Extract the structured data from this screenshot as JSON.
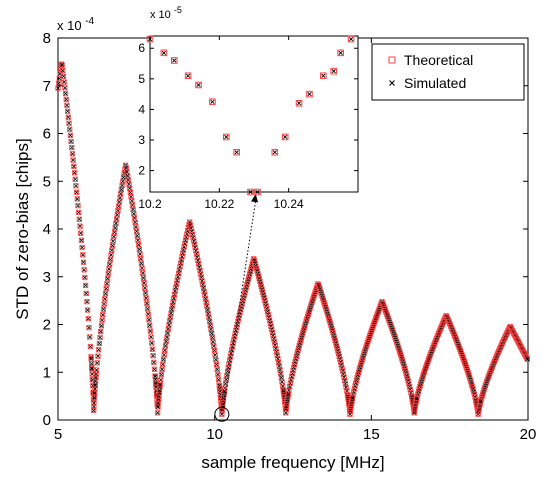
{
  "chart_data": [
    {
      "id": "main",
      "type": "scatter",
      "xlabel": "sample frequency [MHz]",
      "ylabel": "STD of zero-bias [chips]",
      "y_exponent_label": "x 10",
      "y_exponent_power": "-4",
      "xlim": [
        5,
        20
      ],
      "ylim": [
        0,
        8
      ],
      "y_scale": 0.0001,
      "xticks": [
        5,
        10,
        15,
        20
      ],
      "yticks": [
        0,
        1,
        2,
        3,
        4,
        5,
        6,
        7,
        8
      ],
      "grid": false,
      "legend_position": "top-right",
      "series": [
        {
          "name": "Theoretical",
          "marker": "square",
          "color": "#ff4040"
        },
        {
          "name": "Simulated",
          "marker": "x",
          "color": "#000000"
        }
      ],
      "peaks": [
        {
          "x": 5.12,
          "y": 7.5
        },
        {
          "x": 7.16,
          "y": 5.35
        },
        {
          "x": 9.2,
          "y": 4.15
        },
        {
          "x": 11.25,
          "y": 3.38
        },
        {
          "x": 13.3,
          "y": 2.86
        },
        {
          "x": 15.34,
          "y": 2.48
        },
        {
          "x": 17.39,
          "y": 2.19
        },
        {
          "x": 19.43,
          "y": 1.96
        }
      ],
      "nulls": [
        {
          "x": 6.14,
          "y": 0.2
        },
        {
          "x": 8.18,
          "y": 0.15
        },
        {
          "x": 10.23,
          "y": 0.12
        },
        {
          "x": 12.27,
          "y": 0.15
        },
        {
          "x": 14.32,
          "y": 0.12
        },
        {
          "x": 16.37,
          "y": 0.15
        },
        {
          "x": 18.41,
          "y": 0.12
        }
      ],
      "end_points": [
        {
          "x": 5.0,
          "y": 6.95
        },
        {
          "x": 20.0,
          "y": 1.25
        }
      ],
      "annotation": {
        "circle_x": 10.23,
        "circle_y": 0.12
      }
    },
    {
      "id": "inset",
      "type": "scatter",
      "title": "",
      "y_exponent_label": "x 10",
      "y_exponent_power": "-5",
      "xlim": [
        10.2,
        10.26
      ],
      "ylim": [
        1.3,
        6.4
      ],
      "y_scale": 1e-05,
      "xticks": [
        10.2,
        10.22,
        10.24
      ],
      "xtick_labels": [
        "10.2",
        "10.22",
        "10.24"
      ],
      "yticks": [
        2,
        3,
        4,
        5,
        6
      ],
      "series": [
        {
          "name": "Theoretical",
          "marker": "square",
          "color": "#ff4040"
        },
        {
          "name": "Simulated",
          "marker": "x",
          "color": "#000000"
        }
      ],
      "x": [
        10.2,
        10.204,
        10.207,
        10.211,
        10.214,
        10.218,
        10.222,
        10.225,
        10.229,
        10.231,
        10.236,
        10.239,
        10.243,
        10.246,
        10.25,
        10.253,
        10.255,
        10.258
      ],
      "y": [
        6.3,
        5.85,
        5.6,
        5.1,
        4.8,
        4.25,
        3.1,
        2.6,
        1.3,
        1.3,
        2.6,
        3.1,
        4.2,
        4.5,
        5.1,
        5.25,
        5.85,
        6.3
      ]
    }
  ]
}
